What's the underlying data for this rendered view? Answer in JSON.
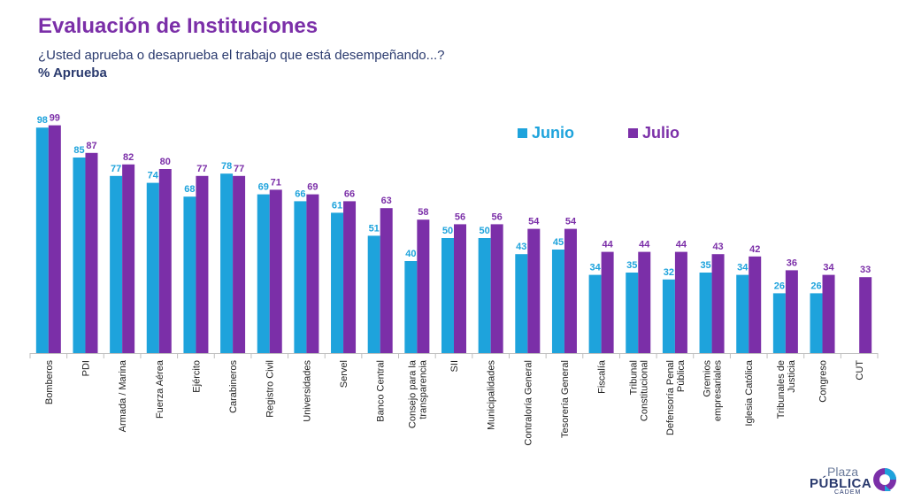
{
  "header": {
    "title": "Evaluación de Instituciones",
    "subtitle": "¿Usted aprueba o desaprueba el trabajo que está desempeñando...?",
    "metric": "% Aprueba"
  },
  "logo": {
    "line1": "Plaza",
    "line2": "PÚBLICA",
    "line3": "CADEM"
  },
  "colors": {
    "junio": "#1ea3dc",
    "julio": "#7b2fa8",
    "title": "#7b2fa8",
    "text": "#2a3a6e"
  },
  "chart_data": {
    "type": "bar",
    "ylim": [
      0,
      100
    ],
    "legend_position": "top-right",
    "grid": false,
    "categories": [
      [
        "Bomberos"
      ],
      [
        "PDI"
      ],
      [
        "Armada / Marina"
      ],
      [
        "Fuerza Aérea"
      ],
      [
        "Ejército"
      ],
      [
        "Carabineros"
      ],
      [
        "Registro Civil"
      ],
      [
        "Universidades"
      ],
      [
        "Servel"
      ],
      [
        "Banco Central"
      ],
      [
        "Consejo para la",
        "transparencia"
      ],
      [
        "SII"
      ],
      [
        "Municipalidades"
      ],
      [
        "Contraloría General"
      ],
      [
        "Tesorería General"
      ],
      [
        "Fiscalía"
      ],
      [
        "Tribunal",
        "Constitucional"
      ],
      [
        "Defensoría Penal",
        "Pública"
      ],
      [
        "Gremios",
        "empresariales"
      ],
      [
        "Iglesia Católica"
      ],
      [
        "Tribunales de",
        "Justicia"
      ],
      [
        "Congreso"
      ],
      [
        "CUT"
      ]
    ],
    "series": [
      {
        "name": "Junio",
        "values": [
          98,
          85,
          77,
          74,
          68,
          78,
          69,
          66,
          61,
          51,
          40,
          50,
          50,
          43,
          45,
          34,
          35,
          32,
          35,
          34,
          26,
          26,
          null
        ]
      },
      {
        "name": "Julio",
        "values": [
          99,
          87,
          82,
          80,
          77,
          77,
          71,
          69,
          66,
          63,
          58,
          56,
          56,
          54,
          54,
          44,
          44,
          44,
          43,
          42,
          36,
          34,
          33
        ]
      }
    ]
  }
}
